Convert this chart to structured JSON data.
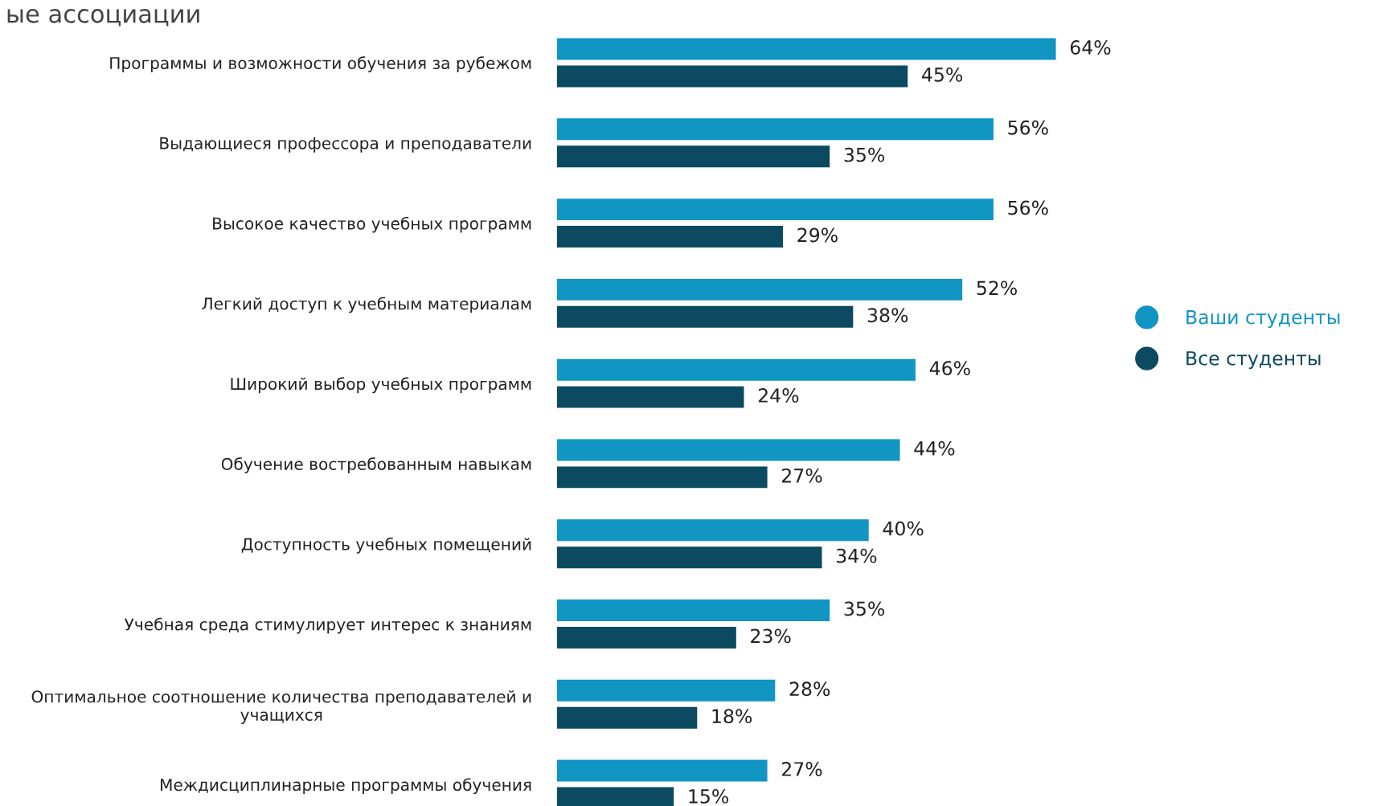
{
  "chart_data": {
    "type": "bar",
    "orientation": "horizontal",
    "title": "ые ассоциации",
    "categories": [
      "Программы и возможности обучения за рубежом",
      "Выдающиеся профессора и преподаватели",
      "Высокое качество учебных программ",
      "Легкий доступ к учебным материалам",
      "Широкий выбор учебных программ",
      "Обучение востребованным навыкам",
      "Доступность учебных помещений",
      "Учебная среда стимулирует интерес к знаниям",
      "Оптимальное соотношение количества преподавателей и\nучащихся",
      "Междисциплинарные программы обучения"
    ],
    "series": [
      {
        "name": "Ваши студенты",
        "color": "#1195c3",
        "values": [
          64,
          56,
          56,
          52,
          46,
          44,
          40,
          35,
          28,
          27
        ],
        "value_labels": [
          "64%",
          "56%",
          "56%",
          "52%",
          "46%",
          "44%",
          "40%",
          "35%",
          "28%",
          "27%"
        ]
      },
      {
        "name": "Все студенты",
        "color": "#0b4a61",
        "values": [
          45,
          35,
          29,
          38,
          24,
          27,
          34,
          23,
          18,
          15
        ],
        "value_labels": [
          "45%",
          "35%",
          "29%",
          "38%",
          "24%",
          "27%",
          "34%",
          "23%",
          "18%",
          "15%"
        ]
      }
    ],
    "legend": "right",
    "grid": false,
    "marker": "circle"
  }
}
